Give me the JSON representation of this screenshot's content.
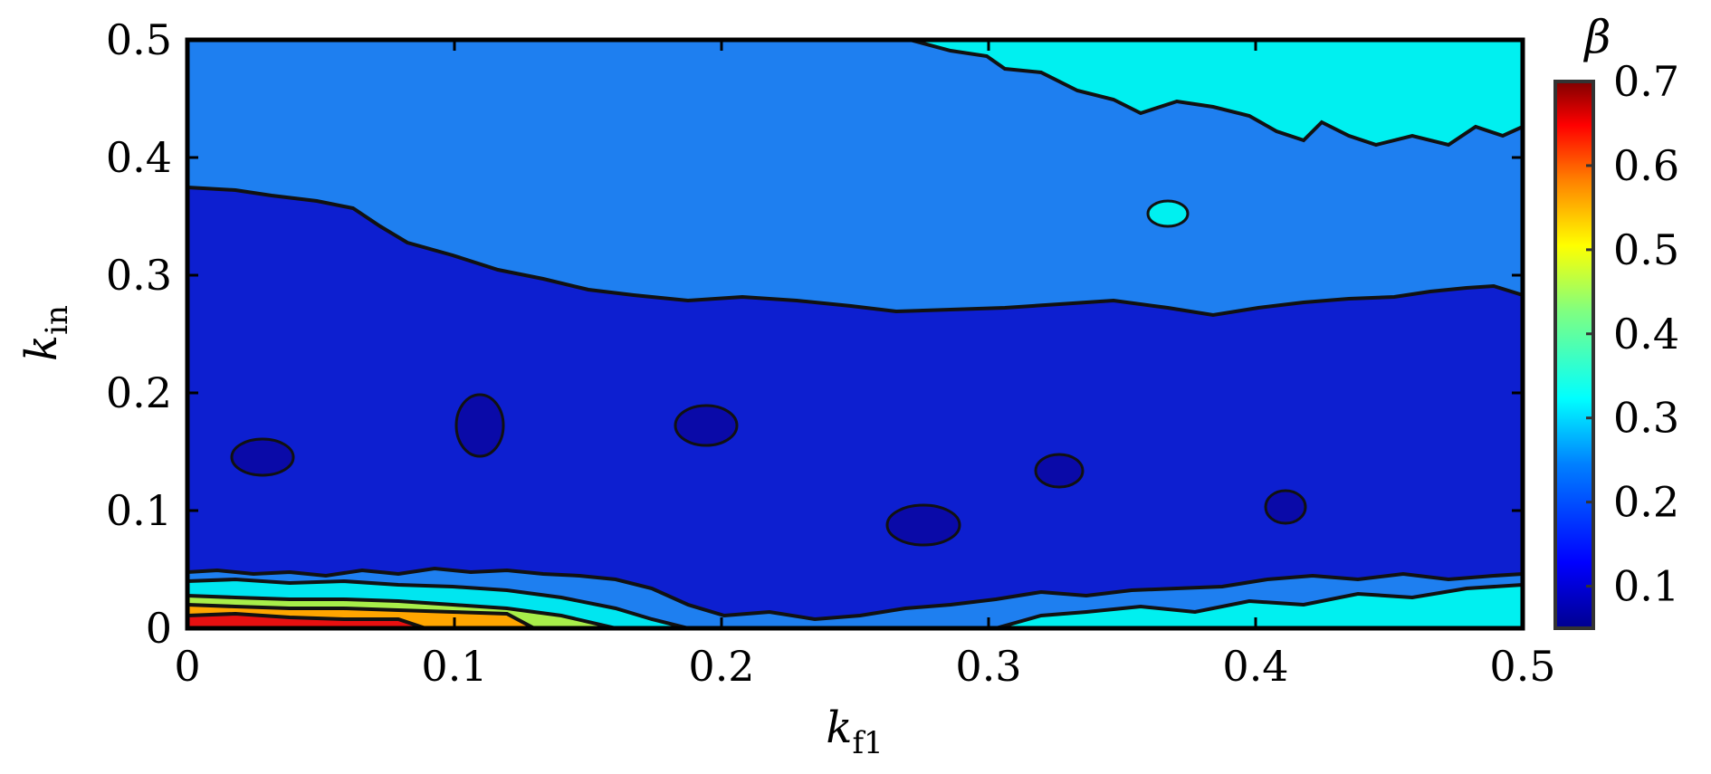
{
  "chart_data": {
    "type": "heatmap",
    "subtype": "filled-contour",
    "x_label": {
      "var": "k",
      "sub": "f1"
    },
    "y_label": {
      "var": "k",
      "sub": "in"
    },
    "x_range": [
      0,
      0.5
    ],
    "y_range": [
      0,
      0.5
    ],
    "x_ticks": [
      "0",
      "0.1",
      "0.2",
      "0.3",
      "0.4",
      "0.5"
    ],
    "y_ticks": [
      "0",
      "0.1",
      "0.2",
      "0.3",
      "0.4",
      "0.5"
    ],
    "colorbar": {
      "title": "β",
      "range": [
        0.05,
        0.7
      ],
      "ticks": [
        "0.1",
        "0.2",
        "0.3",
        "0.4",
        "0.5",
        "0.6",
        "0.7"
      ],
      "colormap": "jet"
    },
    "contour_levels": [
      0.1,
      0.15,
      0.2,
      0.25,
      0.3,
      0.35,
      0.4,
      0.45,
      0.5,
      0.55,
      0.6,
      0.65
    ],
    "regions": [
      {
        "name": "upper-right",
        "beta": 0.3,
        "boundary_x": [
          0.27,
          0.5
        ],
        "note": "k_in above ~0.42"
      },
      {
        "name": "upper-band",
        "beta": 0.2,
        "k_in_range": [
          0.28,
          0.5
        ],
        "edge_left_k_in": 0.37
      },
      {
        "name": "middle-band",
        "beta": 0.1,
        "k_in_range": [
          0.04,
          0.28
        ]
      },
      {
        "name": "lower-band",
        "beta": [
          0.2,
          0.35
        ],
        "k_in_range": [
          0.0,
          0.05
        ]
      },
      {
        "name": "lower-left-peak",
        "beta": 0.7,
        "k_f1_range": [
          0,
          0.13
        ],
        "k_in_range": [
          0,
          0.03
        ]
      }
    ]
  }
}
